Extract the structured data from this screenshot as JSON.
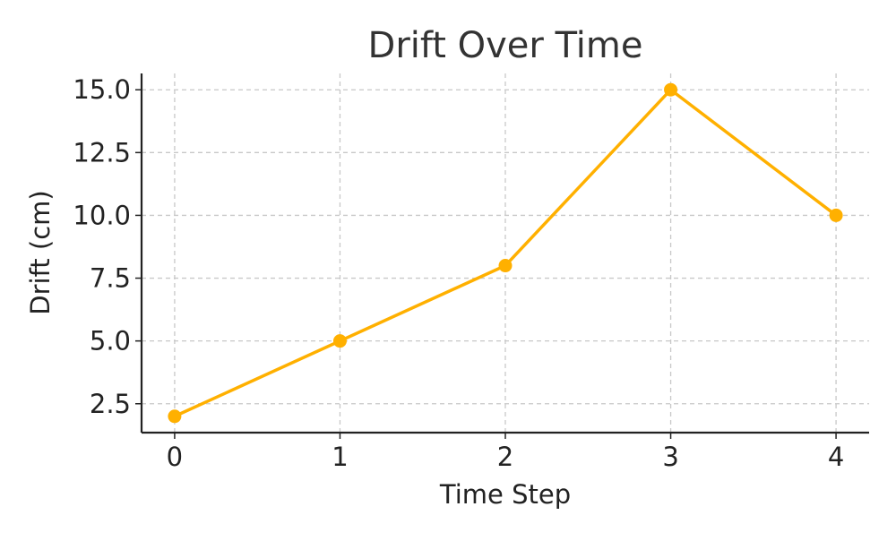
{
  "chart_data": {
    "type": "line",
    "title": "Drift Over Time",
    "xlabel": "Time Step",
    "ylabel": "Drift (cm)",
    "x": [
      0,
      1,
      2,
      3,
      4
    ],
    "xticks": [
      "0",
      "1",
      "2",
      "3",
      "4"
    ],
    "yticks": [
      "2.5",
      "5.0",
      "7.5",
      "10.0",
      "12.5",
      "15.0"
    ],
    "series": [
      {
        "values": [
          2,
          5,
          8,
          15,
          10
        ],
        "color": "#FFB000"
      }
    ],
    "xlim": [
      -0.2,
      4.2
    ],
    "ylim": [
      1.35,
      15.65
    ],
    "grid": true,
    "legend": "none"
  }
}
